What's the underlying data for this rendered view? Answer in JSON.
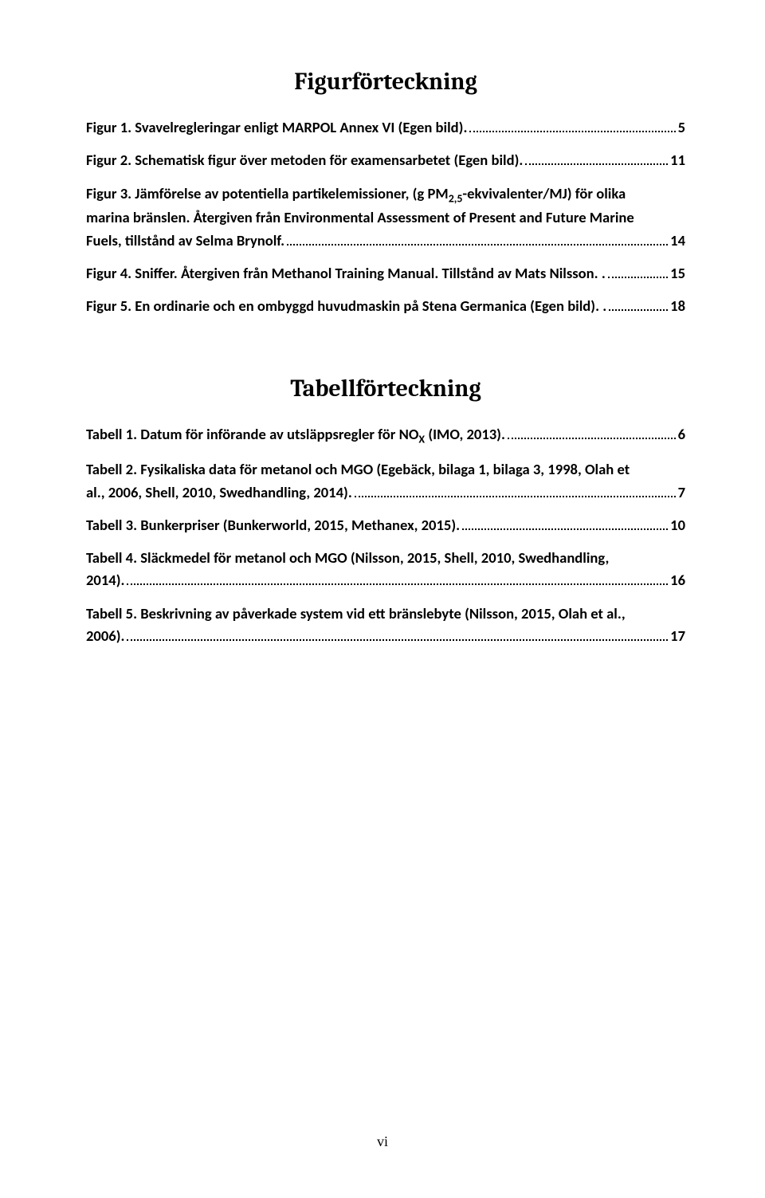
{
  "figures": {
    "heading": "Figurförteckning",
    "entries": [
      {
        "pre": "Figur 1. Svavelregleringar enligt MARPOL Annex VI (Egen bild).",
        "page": "5"
      },
      {
        "pre": "Figur 2. Schematisk figur över metoden för examensarbetet (Egen bild).",
        "page": "11"
      },
      {
        "line1": "Figur 3. Jämförelse av potentiella partikelemissioner, (g PM",
        "sub1": "2,5",
        "line1b": "-ekvivalenter/MJ) för olika",
        "line2": "marina bränslen. Återgiven från Environmental Assessment of Present and Future Marine",
        "pre": "Fuels, tillstånd av Selma Brynolf.",
        "page": "14"
      },
      {
        "pre": "Figur 4. Sniffer. Återgiven från Methanol Training Manual. Tillstånd av Mats Nilsson. .",
        "page": "15"
      },
      {
        "pre": "Figur 5. En ordinarie och en ombyggd huvudmaskin på Stena Germanica (Egen bild). .",
        "page": "18"
      }
    ]
  },
  "tables": {
    "heading": "Tabellförteckning",
    "entries": [
      {
        "pre_a": "Tabell 1. Datum för införande av utsläppsregler för NO",
        "sub": "X",
        "pre_b": " (IMO, 2013).",
        "page": "6"
      },
      {
        "line1": "Tabell 2. Fysikaliska data för metanol och MGO (Egebäck, bilaga 1, bilaga 3, 1998, Olah et",
        "pre": "al., 2006, Shell, 2010, Swedhandling, 2014).",
        "page": "7"
      },
      {
        "pre": "Tabell 3. Bunkerpriser (Bunkerworld, 2015, Methanex, 2015).",
        "page": "10"
      },
      {
        "line1": "Tabell 4. Släckmedel för metanol och MGO (Nilsson, 2015, Shell, 2010, Swedhandling,",
        "pre": "2014).",
        "page": "16"
      },
      {
        "line1": "Tabell 5. Beskrivning av påverkade system vid ett bränslebyte (Nilsson, 2015, Olah et al.,",
        "pre": "2006).",
        "page": "17"
      }
    ]
  },
  "page_number": "vi"
}
